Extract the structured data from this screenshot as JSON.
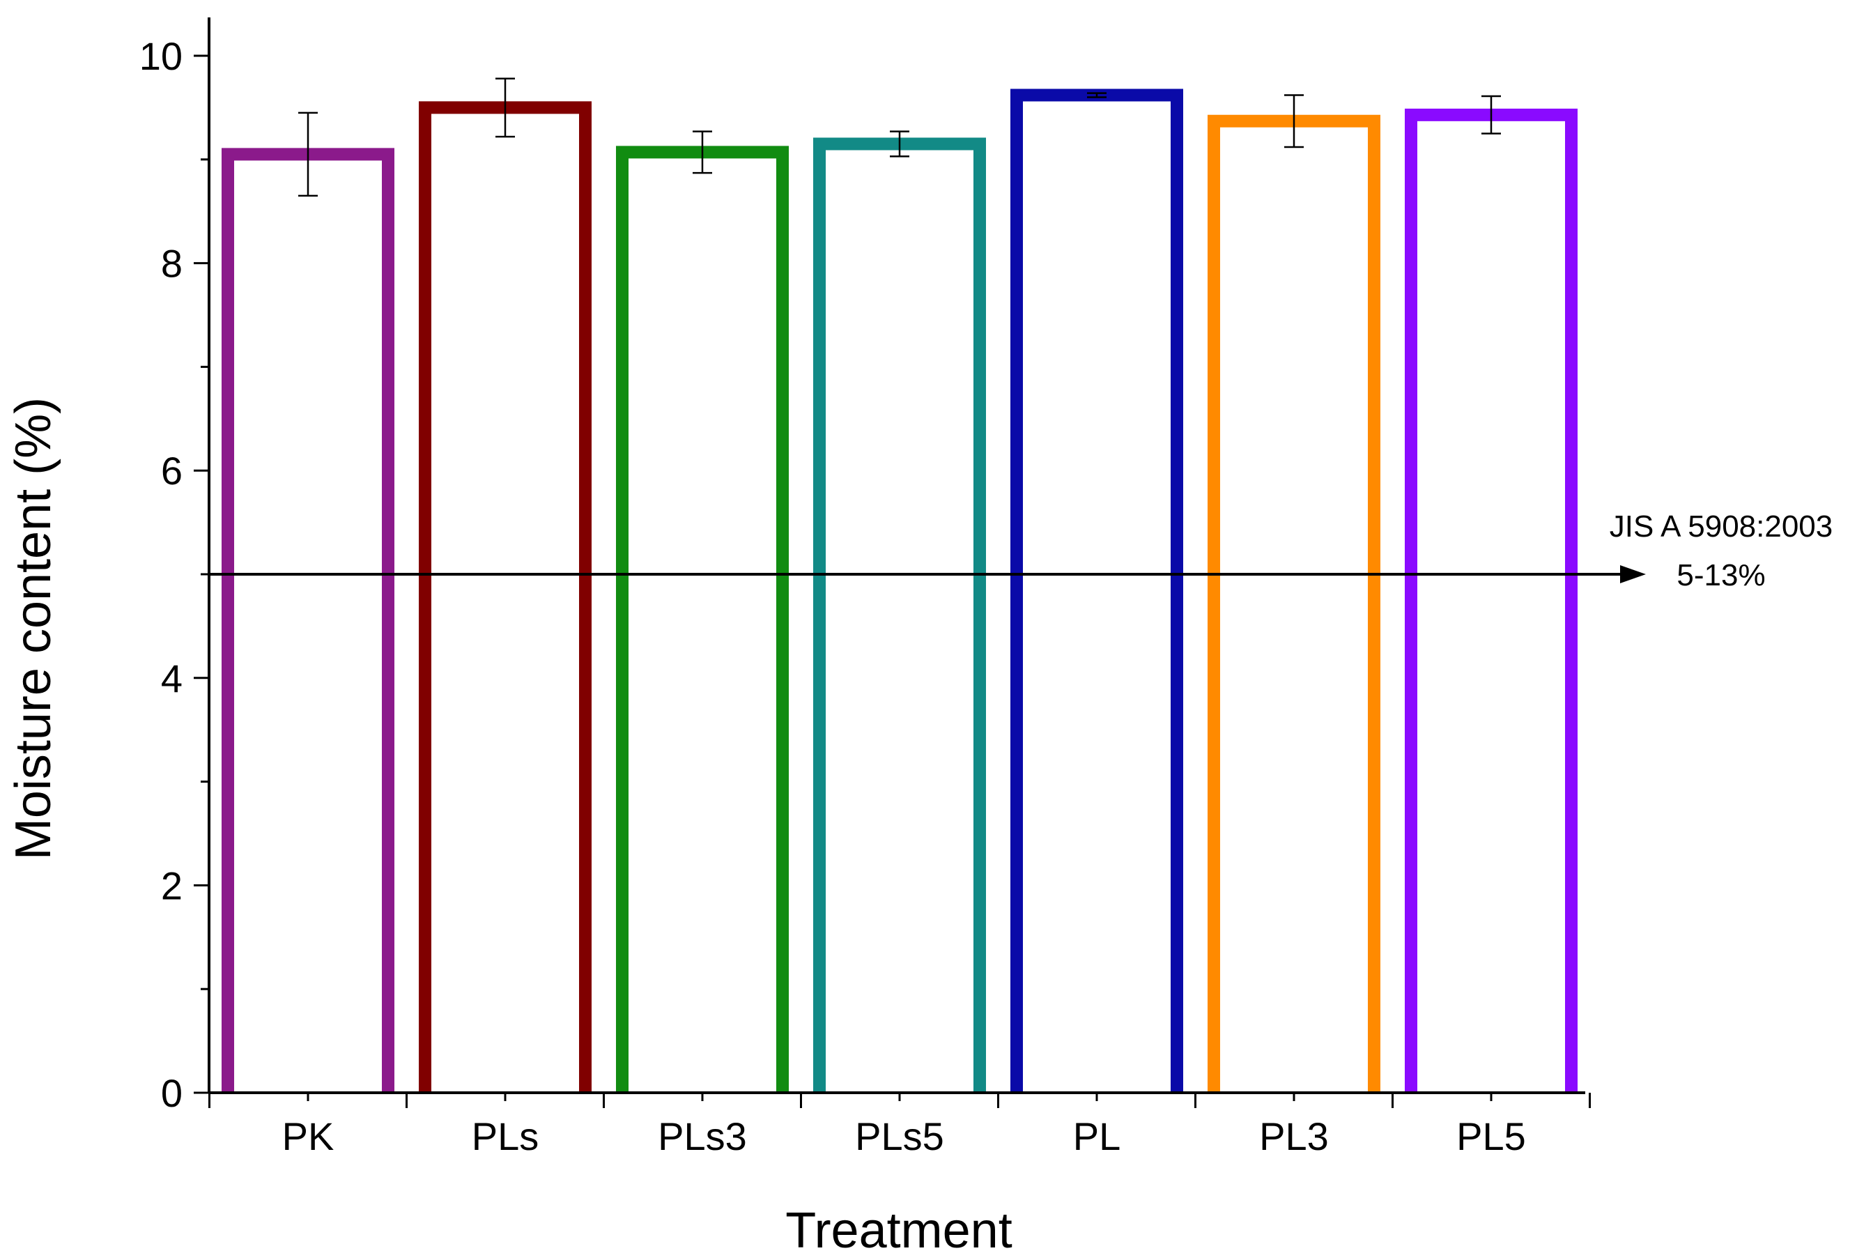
{
  "chart_data": {
    "type": "bar",
    "title": "",
    "xlabel": "Treatment",
    "ylabel": "Moisture content (%)",
    "ylim": [
      0,
      10
    ],
    "yticks": [
      0,
      2,
      4,
      6,
      8,
      10
    ],
    "categories": [
      "PK",
      "PLs",
      "PLs3",
      "PLs5",
      "PL",
      "PL3",
      "PL5"
    ],
    "values": [
      9.05,
      9.5,
      9.07,
      9.15,
      9.62,
      9.37,
      9.43
    ],
    "errors": [
      0.4,
      0.28,
      0.2,
      0.12,
      0.02,
      0.25,
      0.18
    ],
    "colors": [
      "#8B1A8B",
      "#800000",
      "#118C11",
      "#128A86",
      "#0A0AA8",
      "#FF8A00",
      "#8A0AFF"
    ],
    "reference_line": {
      "y": 5,
      "label_line1": "JIS A 5908:2003",
      "label_line2": "5-13%"
    },
    "grid": false,
    "legend": "none"
  }
}
